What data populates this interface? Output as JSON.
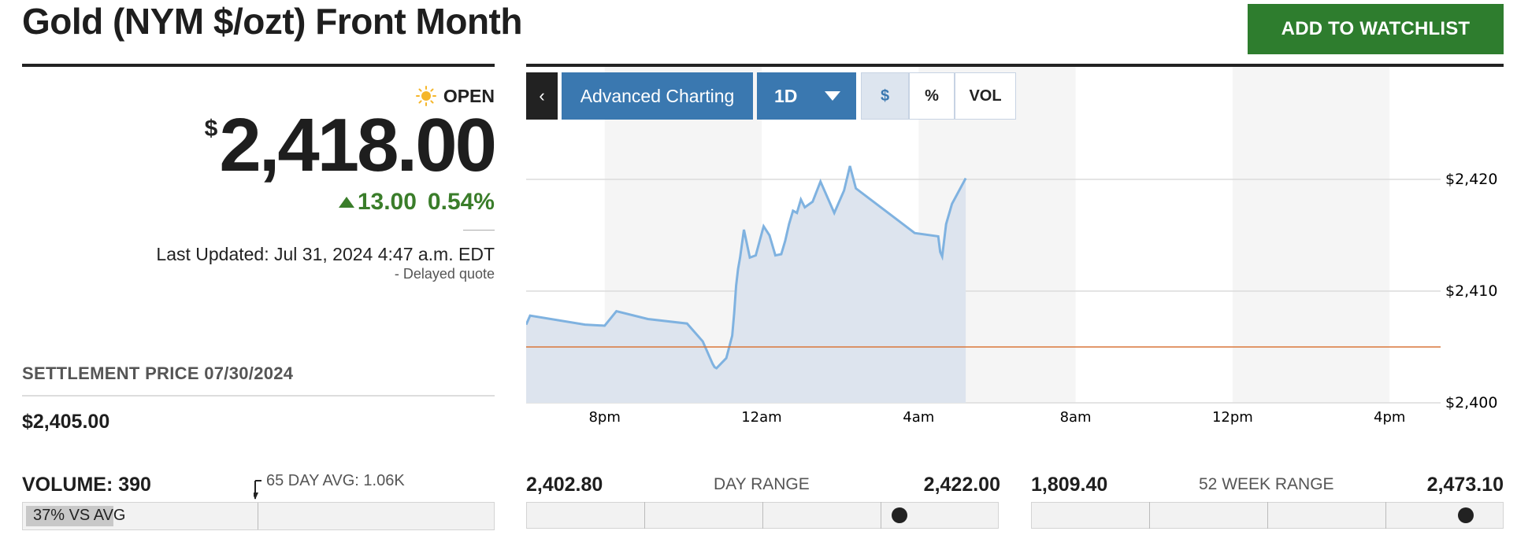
{
  "header": {
    "title": "Gold (NYM $/ozt) Front Month",
    "watchlist_label": "ADD TO WATCHLIST"
  },
  "quote": {
    "status": "OPEN",
    "currency_symbol": "$",
    "price": "2,418.00",
    "change": "13.00",
    "change_percent": "0.54%",
    "last_updated": "Last Updated: Jul 31, 2024 4:47 a.m. EDT",
    "delayed": "-  Delayed quote"
  },
  "settlement": {
    "label": "SETTLEMENT PRICE 07/30/2024",
    "value": "$2,405.00"
  },
  "volume": {
    "label": "VOLUME: 390",
    "avg_label": "65 DAY AVG: 1.06K",
    "vs_avg": "37% VS AVG",
    "vs_avg_fraction": 0.37
  },
  "toolbar": {
    "back_icon": "chevron-left-icon",
    "advanced_label": "Advanced Charting",
    "range_label": "1D",
    "toggles": [
      "$",
      "%",
      "VOL"
    ],
    "active_toggle": "$"
  },
  "day_range": {
    "low": "2,402.80",
    "title": "DAY RANGE",
    "high": "2,422.00",
    "position": 0.79
  },
  "week52_range": {
    "low": "1,809.40",
    "title": "52 WEEK RANGE",
    "high": "2,473.10",
    "position": 0.92
  },
  "colors": {
    "accent": "#3a78b0",
    "positive": "#3a7d2a",
    "watchlist_button": "#2e7d2e",
    "line": "#7fb2e0",
    "fill": "#dde4ee",
    "settlement_line": "#d9773a"
  },
  "chart_data": {
    "type": "area",
    "x_ticks": [
      "8pm",
      "12am",
      "4am",
      "8am",
      "12pm",
      "4pm"
    ],
    "y_ticks": [
      "$2,400",
      "$2,410",
      "$2,420"
    ],
    "ylim": [
      2400,
      2421
    ],
    "reference_line": 2405,
    "x_unit": "hours since 6pm",
    "x": [
      0,
      0.1,
      1.5,
      2.0,
      2.3,
      3.1,
      4.1,
      4.5,
      4.75,
      4.8,
      4.85,
      5.1,
      5.25,
      5.3,
      5.35,
      5.4,
      5.45,
      5.55,
      5.7,
      5.85,
      6.05,
      6.2,
      6.35,
      6.5,
      6.6,
      6.7,
      6.8,
      6.9,
      7.0,
      7.1,
      7.3,
      7.5,
      7.85,
      8.1,
      8.25,
      8.4,
      9.9,
      10.5,
      10.55,
      10.6,
      10.7,
      10.85,
      11.2
    ],
    "y": [
      2407,
      2407.8,
      2407,
      2406.9,
      2408.2,
      2407.5,
      2407.1,
      2405.5,
      2403.5,
      2403.2,
      2403.1,
      2404,
      2406,
      2408,
      2410.5,
      2412,
      2413,
      2415.5,
      2413,
      2413.2,
      2415.8,
      2415,
      2413.2,
      2413.3,
      2414.5,
      2416,
      2417.2,
      2417,
      2418.2,
      2417.5,
      2418,
      2419.8,
      2417,
      2419,
      2421.2,
      2419.2,
      2415.2,
      2414.9,
      2413.5,
      2413.1,
      2416,
      2417.8,
      2420.1
    ],
    "xlim": [
      0,
      23.3
    ]
  }
}
